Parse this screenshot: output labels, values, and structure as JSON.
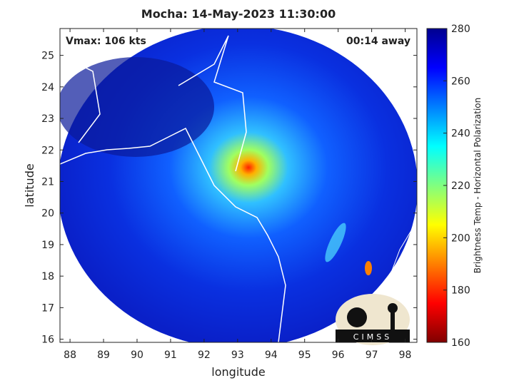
{
  "chart_data": {
    "type": "map",
    "title": "Mocha: 14-May-2023 11:30:00",
    "xlabel": "longitude",
    "ylabel": "latitude",
    "xlim": [
      87.7,
      98.35
    ],
    "ylim": [
      15.9,
      25.85
    ],
    "xticks": [
      88,
      89,
      90,
      91,
      92,
      93,
      94,
      95,
      96,
      97,
      98
    ],
    "yticks": [
      16,
      17,
      18,
      19,
      20,
      21,
      22,
      23,
      24,
      25
    ],
    "annotations": [
      "Vmax: 106 kts",
      "00:14 away"
    ],
    "colorbar": {
      "label": "Brightness Temp - Horizontal Polarization",
      "lim": [
        160,
        280
      ],
      "ticks": [
        160,
        180,
        200,
        220,
        240,
        260,
        280
      ]
    },
    "logo": "CIMSS"
  }
}
